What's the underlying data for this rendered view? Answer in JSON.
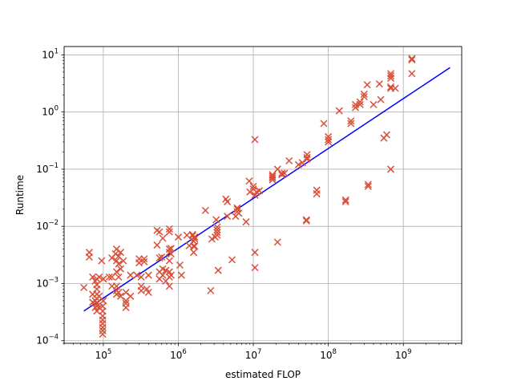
{
  "chart_data": {
    "type": "scatter",
    "xlabel": "estimated FLOP",
    "ylabel": "Runtime",
    "xscale": "log",
    "yscale": "log",
    "xlim": [
      30000,
      6000000000
    ],
    "ylim": [
      9e-05,
      14
    ],
    "grid": true,
    "x_ticks": [
      {
        "value": 100000,
        "base": "10",
        "exp": "5"
      },
      {
        "value": 1000000,
        "base": "10",
        "exp": "6"
      },
      {
        "value": 10000000,
        "base": "10",
        "exp": "7"
      },
      {
        "value": 100000000,
        "base": "10",
        "exp": "8"
      },
      {
        "value": 1000000000,
        "base": "10",
        "exp": "9"
      }
    ],
    "y_ticks": [
      {
        "value": 0.0001,
        "base": "10",
        "exp": "−4"
      },
      {
        "value": 0.001,
        "base": "10",
        "exp": "−3"
      },
      {
        "value": 0.01,
        "base": "10",
        "exp": "−2"
      },
      {
        "value": 0.1,
        "base": "10",
        "exp": "−1"
      },
      {
        "value": 1,
        "base": "10",
        "exp": "0"
      },
      {
        "value": 10,
        "base": "10",
        "exp": "1"
      }
    ],
    "series": [
      {
        "marker": "x",
        "color": "#d9503a",
        "points": [
          [
            55000,
            0.00085
          ],
          [
            65000,
            0.0035
          ],
          [
            65000,
            0.0029
          ],
          [
            72000,
            0.0013
          ],
          [
            72000,
            0.00065
          ],
          [
            72000,
            0.00047
          ],
          [
            78000,
            0.0011
          ],
          [
            78000,
            0.0005
          ],
          [
            78000,
            0.00038
          ],
          [
            82000,
            0.0012
          ],
          [
            82000,
            0.00095
          ],
          [
            82000,
            0.0008
          ],
          [
            82000,
            0.00065
          ],
          [
            82000,
            0.00055
          ],
          [
            82000,
            0.00045
          ],
          [
            82000,
            0.0004
          ],
          [
            82000,
            0.00033
          ],
          [
            88000,
            0.0013
          ],
          [
            88000,
            0.0006
          ],
          [
            88000,
            0.00038
          ],
          [
            95000,
            0.0025
          ],
          [
            98000,
            0.0004
          ],
          [
            98000,
            0.00033
          ],
          [
            98000,
            0.00027
          ],
          [
            98000,
            0.00023
          ],
          [
            98000,
            0.0002
          ],
          [
            98000,
            0.00017
          ],
          [
            98000,
            0.00015
          ],
          [
            98000,
            0.00013
          ],
          [
            100000,
            0.0012
          ],
          [
            100000,
            0.0005
          ],
          [
            120000,
            0.0013
          ],
          [
            130000,
            0.0028
          ],
          [
            130000,
            0.0013
          ],
          [
            130000,
            0.0009
          ],
          [
            145000,
            0.0033
          ],
          [
            150000,
            0.004
          ],
          [
            150000,
            0.0025
          ],
          [
            150000,
            0.0016
          ],
          [
            150000,
            0.0009
          ],
          [
            150000,
            0.00075
          ],
          [
            150000,
            0.00065
          ],
          [
            160000,
            0.003
          ],
          [
            160000,
            0.0022
          ],
          [
            160000,
            0.0013
          ],
          [
            160000,
            0.0007
          ],
          [
            170000,
            0.0035
          ],
          [
            170000,
            0.0018
          ],
          [
            170000,
            0.0006
          ],
          [
            185000,
            0.0025
          ],
          [
            200000,
            0.0007
          ],
          [
            200000,
            0.0005
          ],
          [
            200000,
            0.00045
          ],
          [
            200000,
            0.00038
          ],
          [
            230000,
            0.0014
          ],
          [
            230000,
            0.0006
          ],
          [
            280000,
            0.0014
          ],
          [
            300000,
            0.0027
          ],
          [
            300000,
            0.0023
          ],
          [
            320000,
            0.0013
          ],
          [
            320000,
            0.0009
          ],
          [
            320000,
            0.00075
          ],
          [
            350000,
            0.0027
          ],
          [
            350000,
            0.0024
          ],
          [
            380000,
            0.0008
          ],
          [
            400000,
            0.0014
          ],
          [
            400000,
            0.0007
          ],
          [
            520000,
            0.0085
          ],
          [
            520000,
            0.0047
          ],
          [
            560000,
            0.008
          ],
          [
            560000,
            0.0028
          ],
          [
            560000,
            0.0016
          ],
          [
            560000,
            0.0012
          ],
          [
            600000,
            0.0029
          ],
          [
            620000,
            0.0062
          ],
          [
            620000,
            0.0018
          ],
          [
            620000,
            0.0014
          ],
          [
            680000,
            0.0017
          ],
          [
            680000,
            0.0011
          ],
          [
            760000,
            0.009
          ],
          [
            760000,
            0.008
          ],
          [
            760000,
            0.004
          ],
          [
            760000,
            0.0035
          ],
          [
            760000,
            0.0025
          ],
          [
            760000,
            0.0016
          ],
          [
            760000,
            0.0013
          ],
          [
            760000,
            0.0009
          ],
          [
            800000,
            0.0041
          ],
          [
            800000,
            0.0033
          ],
          [
            800000,
            0.0014
          ],
          [
            1000000,
            0.0065
          ],
          [
            1050000,
            0.0021
          ],
          [
            1100000,
            0.0014
          ],
          [
            1300000,
            0.007
          ],
          [
            1400000,
            0.0046
          ],
          [
            1550000,
            0.0072
          ],
          [
            1550000,
            0.0069
          ],
          [
            1600000,
            0.0055
          ],
          [
            1600000,
            0.0045
          ],
          [
            1600000,
            0.0035
          ],
          [
            1650000,
            0.0065
          ],
          [
            1650000,
            0.006
          ],
          [
            1650000,
            0.0045
          ],
          [
            2300000,
            0.019
          ],
          [
            2700000,
            0.00075
          ],
          [
            2800000,
            0.006
          ],
          [
            3100000,
            0.0065
          ],
          [
            3200000,
            0.013
          ],
          [
            3300000,
            0.0097
          ],
          [
            3300000,
            0.0087
          ],
          [
            3300000,
            0.0078
          ],
          [
            3300000,
            0.007
          ],
          [
            3400000,
            0.0017
          ],
          [
            4300000,
            0.03
          ],
          [
            4500000,
            0.027
          ],
          [
            4500000,
            0.015
          ],
          [
            5200000,
            0.0026
          ],
          [
            5800000,
            0.015
          ],
          [
            6100000,
            0.021
          ],
          [
            6100000,
            0.02
          ],
          [
            6100000,
            0.018
          ],
          [
            6400000,
            0.017
          ],
          [
            8000000,
            0.012
          ],
          [
            8800000,
            0.062
          ],
          [
            9000000,
            0.04
          ],
          [
            10000000,
            0.05
          ],
          [
            10000000,
            0.045
          ],
          [
            10500000,
            0.33
          ],
          [
            10500000,
            0.035
          ],
          [
            10500000,
            0.0019
          ],
          [
            10500000,
            0.0035
          ],
          [
            11000000,
            0.04
          ],
          [
            12000000,
            0.042
          ],
          [
            18000000,
            0.08
          ],
          [
            18000000,
            0.075
          ],
          [
            18000000,
            0.07
          ],
          [
            18000000,
            0.065
          ],
          [
            21000000,
            0.0053
          ],
          [
            21000000,
            0.1
          ],
          [
            24000000,
            0.085
          ],
          [
            24000000,
            0.08
          ],
          [
            26000000,
            0.085
          ],
          [
            30000000,
            0.14
          ],
          [
            40000000,
            0.12
          ],
          [
            45000000,
            0.13
          ],
          [
            52000000,
            0.18
          ],
          [
            52000000,
            0.16
          ],
          [
            52000000,
            0.15
          ],
          [
            51000000,
            0.013
          ],
          [
            51000000,
            0.0125
          ],
          [
            70000000,
            0.043
          ],
          [
            70000000,
            0.037
          ],
          [
            87000000,
            0.63
          ],
          [
            100000000,
            0.37
          ],
          [
            100000000,
            0.33
          ],
          [
            100000000,
            0.3
          ],
          [
            140000000,
            1.05
          ],
          [
            170000000,
            0.029
          ],
          [
            170000000,
            0.027
          ],
          [
            200000000,
            0.7
          ],
          [
            200000000,
            0.63
          ],
          [
            230000000,
            1.35
          ],
          [
            230000000,
            1.2
          ],
          [
            265000000,
            1.5
          ],
          [
            265000000,
            1.35
          ],
          [
            300000000,
            2.05
          ],
          [
            300000000,
            1.85
          ],
          [
            330000000,
            3.0
          ],
          [
            340000000,
            0.054
          ],
          [
            340000000,
            0.05
          ],
          [
            400000000,
            1.35
          ],
          [
            480000000,
            3.1
          ],
          [
            500000000,
            1.65
          ],
          [
            550000000,
            0.35
          ],
          [
            600000000,
            0.4
          ],
          [
            680000000,
            4.7
          ],
          [
            680000000,
            4.3
          ],
          [
            680000000,
            3.9
          ],
          [
            680000000,
            2.75
          ],
          [
            680000000,
            2.6
          ],
          [
            680000000,
            0.1
          ],
          [
            780000000,
            2.6
          ],
          [
            1300000000,
            8.6
          ],
          [
            1300000000,
            8.2
          ],
          [
            1300000000,
            4.7
          ]
        ]
      },
      {
        "marker": "line",
        "color": "#0000ff",
        "points": [
          [
            55000,
            0.00033
          ],
          [
            4200000000,
            6.0
          ]
        ]
      }
    ]
  }
}
